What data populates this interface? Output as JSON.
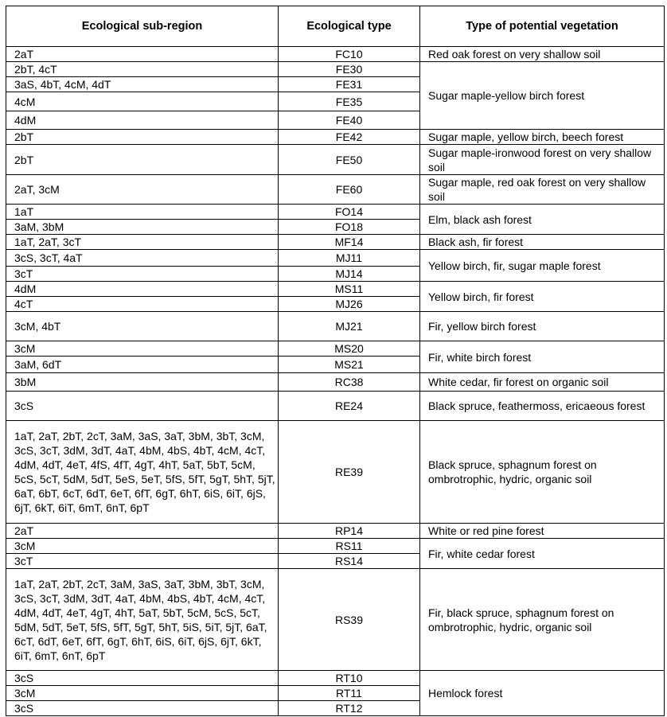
{
  "headers": [
    "Ecological sub-region",
    "Ecological type",
    "Type of potential vegetation"
  ],
  "rows": [
    {
      "region": "2aT",
      "type": "FC10",
      "vegetation": "Red oak forest on very shallow soil",
      "span": 1
    },
    {
      "region": "2bT, 4cT",
      "type": "FE30",
      "vegetation": "Sugar maple-yellow birch forest",
      "span": 4
    },
    {
      "region": "3aS, 4bT, 4cM, 4dT",
      "type": "FE31"
    },
    {
      "region": "4cM",
      "type": "FE35"
    },
    {
      "region": "4dM",
      "type": "FE40"
    },
    {
      "region": "2bT",
      "type": "FE42",
      "vegetation": "Sugar maple, yellow birch, beech forest",
      "span": 1
    },
    {
      "region": "2bT",
      "type": "FE50",
      "vegetation": "Sugar maple-ironwood forest on very shallow soil",
      "span": 1
    },
    {
      "region": "2aT, 3cM",
      "type": "FE60",
      "vegetation": "Sugar maple, red oak forest on very shallow soil",
      "span": 1
    },
    {
      "region": "1aT",
      "type": "FO14",
      "vegetation": "Elm, black ash forest",
      "span": 2
    },
    {
      "region": "3aM, 3bM",
      "type": "FO18"
    },
    {
      "region": "1aT, 2aT, 3cT",
      "type": "MF14",
      "vegetation": "Black ash, fir forest",
      "span": 1
    },
    {
      "region": "3cS, 3cT, 4aT",
      "type": "MJ11",
      "vegetation": "Yellow birch, fir, sugar maple forest",
      "span": 2
    },
    {
      "region": "3cT",
      "type": "MJ14"
    },
    {
      "region": "4dM",
      "type": "MS11",
      "vegetation": "Yellow birch, fir forest",
      "span": 2
    },
    {
      "region": "4cT",
      "type": "MJ26"
    },
    {
      "region": "3cM, 4bT",
      "type": "MJ21",
      "vegetation": "Fir, yellow birch forest",
      "span": 1
    },
    {
      "region": "3cM",
      "type": "MS20",
      "vegetation": "Fir, white birch forest",
      "span": 2
    },
    {
      "region": "3aM, 6dT",
      "type": "MS21"
    },
    {
      "region": "3bM",
      "type": "RC38",
      "vegetation": "White cedar, fir forest on organic soil",
      "span": 1
    },
    {
      "region": "3cS",
      "type": "RE24",
      "vegetation": "Black spruce, feathermoss, ericaeous forest",
      "span": 1
    },
    {
      "region": "1aT, 2aT, 2bT, 2cT, 3aM, 3aS, 3aT, 3bM, 3bT, 3cM, 3cS, 3cT, 3dM, 3dT, 4aT, 4bM, 4bS, 4bT, 4cM, 4cT, 4dM, 4dT, 4eT, 4fS, 4fT, 4gT, 4hT, 5aT, 5bT, 5cM, 5cS, 5cT, 5dM, 5dT, 5eS, 5eT, 5fS, 5fT, 5gT, 5hT, 5jT, 6aT, 6bT, 6cT, 6dT, 6eT, 6fT, 6gT, 6hT, 6iS, 6iT, 6jS, 6jT, 6kT, 6iT, 6mT, 6nT, 6pT",
      "type": "RE39",
      "vegetation": "Black spruce, sphagnum forest on ombrotrophic, hydric, organic soil",
      "span": 1
    },
    {
      "region": "2aT",
      "type": "RP14",
      "vegetation": "White or red pine forest",
      "span": 1
    },
    {
      "region": "3cM",
      "type": "RS11",
      "vegetation": "Fir, white cedar forest",
      "span": 2
    },
    {
      "region": "3cT",
      "type": "RS14"
    },
    {
      "region": "1aT, 2aT, 2bT, 2cT, 3aM, 3aS, 3aT, 3bM, 3bT, 3cM, 3cS, 3cT, 3dM, 3dT, 4aT, 4bM, 4bS, 4bT, 4cM, 4cT, 4dM, 4dT, 4eT, 4gT, 4hT, 5aT, 5bT, 5cM, 5cS, 5cT, 5dM, 5dT, 5eT, 5fS, 5fT, 5gT, 5hT, 5iS, 5iT, 5jT, 6aT,  6cT, 6dT, 6eT, 6fT, 6gT, 6hT, 6iS, 6iT, 6jS, 6jT, 6kT, 6iT, 6mT, 6nT, 6pT",
      "type": "RS39",
      "vegetation": "Fir, black spruce, sphagnum forest on ombrotrophic, hydric, organic soil",
      "span": 1
    },
    {
      "region": "3cS",
      "type": "RT10",
      "vegetation": "Hemlock forest",
      "span": 3
    },
    {
      "region": "3cM",
      "type": "RT11"
    },
    {
      "region": "3cS",
      "type": "RT12"
    }
  ]
}
